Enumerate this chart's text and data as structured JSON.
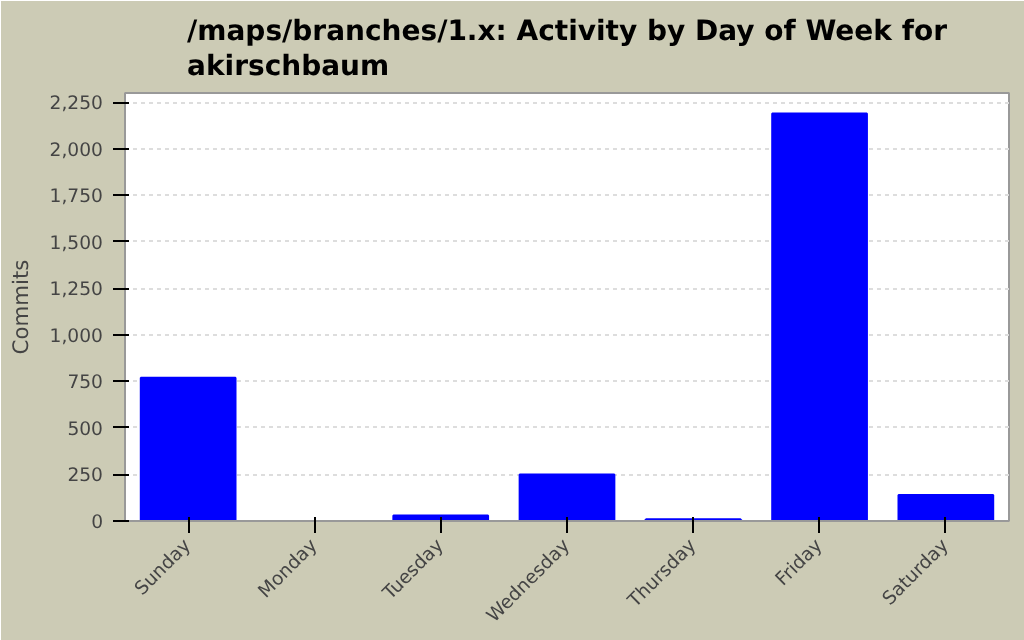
{
  "chart_data": {
    "type": "bar",
    "title": "/maps/branches/1.x: Activity by Day of Week for akirschbaum",
    "ylabel": "Commits",
    "categories": [
      "Sunday",
      "Monday",
      "Tuesday",
      "Wednesday",
      "Thursday",
      "Friday",
      "Saturday"
    ],
    "values": [
      770,
      0,
      30,
      250,
      10,
      2190,
      140
    ],
    "color": "#0000ff",
    "ylim": [
      0,
      2300
    ],
    "yticks": [
      0,
      {
        "value": 250,
        "label": "250"
      },
      {
        "value": 500,
        "label": "500"
      },
      {
        "value": 750,
        "label": "750"
      },
      {
        "value": 1000,
        "label": "1,000"
      },
      {
        "value": 1250,
        "label": "1,250"
      },
      {
        "value": 1500,
        "label": "1,500"
      },
      {
        "value": 1750,
        "label": "1,750"
      },
      {
        "value": 2000,
        "label": "2,000"
      },
      {
        "value": 2250,
        "label": "2,250"
      }
    ],
    "grid": "y"
  }
}
